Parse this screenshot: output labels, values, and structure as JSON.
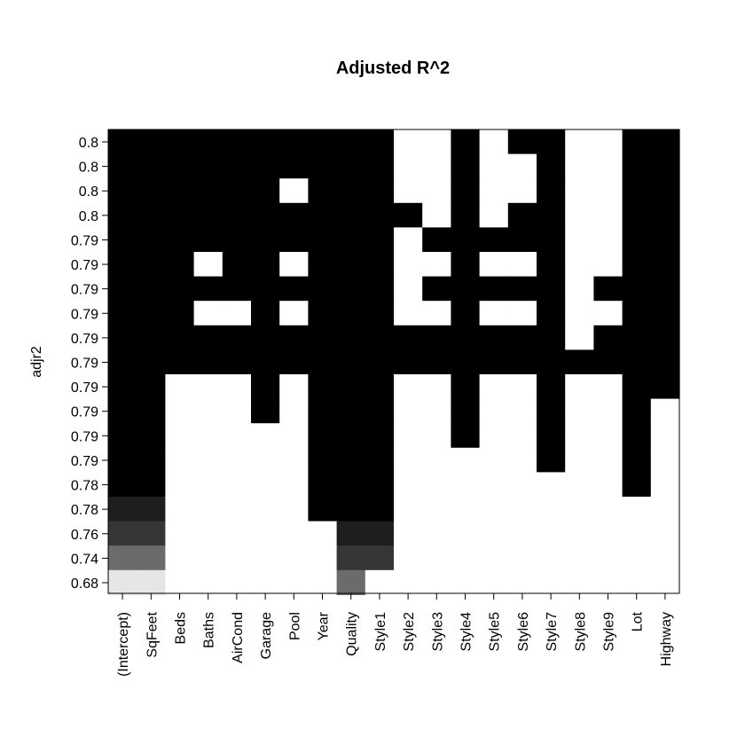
{
  "chart_data": {
    "type": "heatmap",
    "title": "Adjusted R^2",
    "ylabel": "adjr2",
    "xlabel": "",
    "variables": [
      "(Intercept)",
      "SqFeet",
      "Beds",
      "Baths",
      "AirCond",
      "Garage",
      "Pool",
      "Year",
      "Quality",
      "Style1",
      "Style2",
      "Style3",
      "Style4",
      "Style5",
      "Style6",
      "Style7",
      "Style8",
      "Style9",
      "Lot",
      "Highway"
    ],
    "row_labels": [
      "0.8",
      "0.8",
      "0.8",
      "0.8",
      "0.79",
      "0.79",
      "0.79",
      "0.79",
      "0.79",
      "0.79",
      "0.79",
      "0.79",
      "0.79",
      "0.79",
      "0.78",
      "0.78",
      "0.76",
      "0.74",
      "0.68"
    ],
    "legend": "none",
    "grid": false,
    "level_colors": [
      "#000000",
      "#1e1e1e",
      "#363636",
      "#6b6b6b",
      "#e6e6e6",
      "#ffffff"
    ],
    "matrix": [
      [
        0,
        0,
        0,
        0,
        0,
        0,
        0,
        0,
        0,
        0,
        5,
        5,
        0,
        5,
        0,
        0,
        5,
        5,
        0,
        0
      ],
      [
        0,
        0,
        0,
        0,
        0,
        0,
        0,
        0,
        0,
        0,
        5,
        5,
        0,
        5,
        5,
        0,
        5,
        5,
        0,
        0
      ],
      [
        0,
        0,
        0,
        0,
        0,
        0,
        5,
        0,
        0,
        0,
        5,
        5,
        0,
        5,
        5,
        0,
        5,
        5,
        0,
        0
      ],
      [
        0,
        0,
        0,
        0,
        0,
        0,
        0,
        0,
        0,
        0,
        0,
        5,
        0,
        5,
        0,
        0,
        5,
        5,
        0,
        0
      ],
      [
        0,
        0,
        0,
        0,
        0,
        0,
        0,
        0,
        0,
        0,
        5,
        0,
        0,
        0,
        0,
        0,
        5,
        5,
        0,
        0
      ],
      [
        0,
        0,
        0,
        5,
        0,
        0,
        5,
        0,
        0,
        0,
        5,
        5,
        0,
        5,
        5,
        0,
        5,
        5,
        0,
        0
      ],
      [
        0,
        0,
        0,
        0,
        0,
        0,
        0,
        0,
        0,
        0,
        5,
        0,
        0,
        0,
        0,
        0,
        5,
        0,
        0,
        0
      ],
      [
        0,
        0,
        0,
        5,
        5,
        0,
        5,
        0,
        0,
        0,
        5,
        5,
        0,
        5,
        5,
        0,
        5,
        5,
        0,
        0
      ],
      [
        0,
        0,
        0,
        0,
        0,
        0,
        0,
        0,
        0,
        0,
        0,
        0,
        0,
        0,
        0,
        0,
        5,
        0,
        0,
        0
      ],
      [
        0,
        0,
        0,
        0,
        0,
        0,
        0,
        0,
        0,
        0,
        0,
        0,
        0,
        0,
        0,
        0,
        0,
        0,
        0,
        0
      ],
      [
        0,
        0,
        5,
        5,
        5,
        0,
        5,
        0,
        0,
        0,
        5,
        5,
        0,
        5,
        5,
        0,
        5,
        5,
        0,
        0
      ],
      [
        0,
        0,
        5,
        5,
        5,
        0,
        5,
        0,
        0,
        0,
        5,
        5,
        0,
        5,
        5,
        0,
        5,
        5,
        0,
        5
      ],
      [
        0,
        0,
        5,
        5,
        5,
        5,
        5,
        0,
        0,
        0,
        5,
        5,
        0,
        5,
        5,
        0,
        5,
        5,
        0,
        5
      ],
      [
        0,
        0,
        5,
        5,
        5,
        5,
        5,
        0,
        0,
        0,
        5,
        5,
        5,
        5,
        5,
        0,
        5,
        5,
        0,
        5
      ],
      [
        0,
        0,
        5,
        5,
        5,
        5,
        5,
        0,
        0,
        0,
        5,
        5,
        5,
        5,
        5,
        5,
        5,
        5,
        0,
        5
      ],
      [
        1,
        1,
        5,
        5,
        5,
        5,
        5,
        0,
        0,
        0,
        5,
        5,
        5,
        5,
        5,
        5,
        5,
        5,
        5,
        5
      ],
      [
        2,
        2,
        5,
        5,
        5,
        5,
        5,
        5,
        1,
        1,
        5,
        5,
        5,
        5,
        5,
        5,
        5,
        5,
        5,
        5
      ],
      [
        3,
        3,
        5,
        5,
        5,
        5,
        5,
        5,
        2,
        2,
        5,
        5,
        5,
        5,
        5,
        5,
        5,
        5,
        5,
        5
      ],
      [
        4,
        4,
        5,
        5,
        5,
        5,
        5,
        5,
        3,
        5,
        5,
        5,
        5,
        5,
        5,
        5,
        5,
        5,
        5,
        5
      ]
    ]
  }
}
